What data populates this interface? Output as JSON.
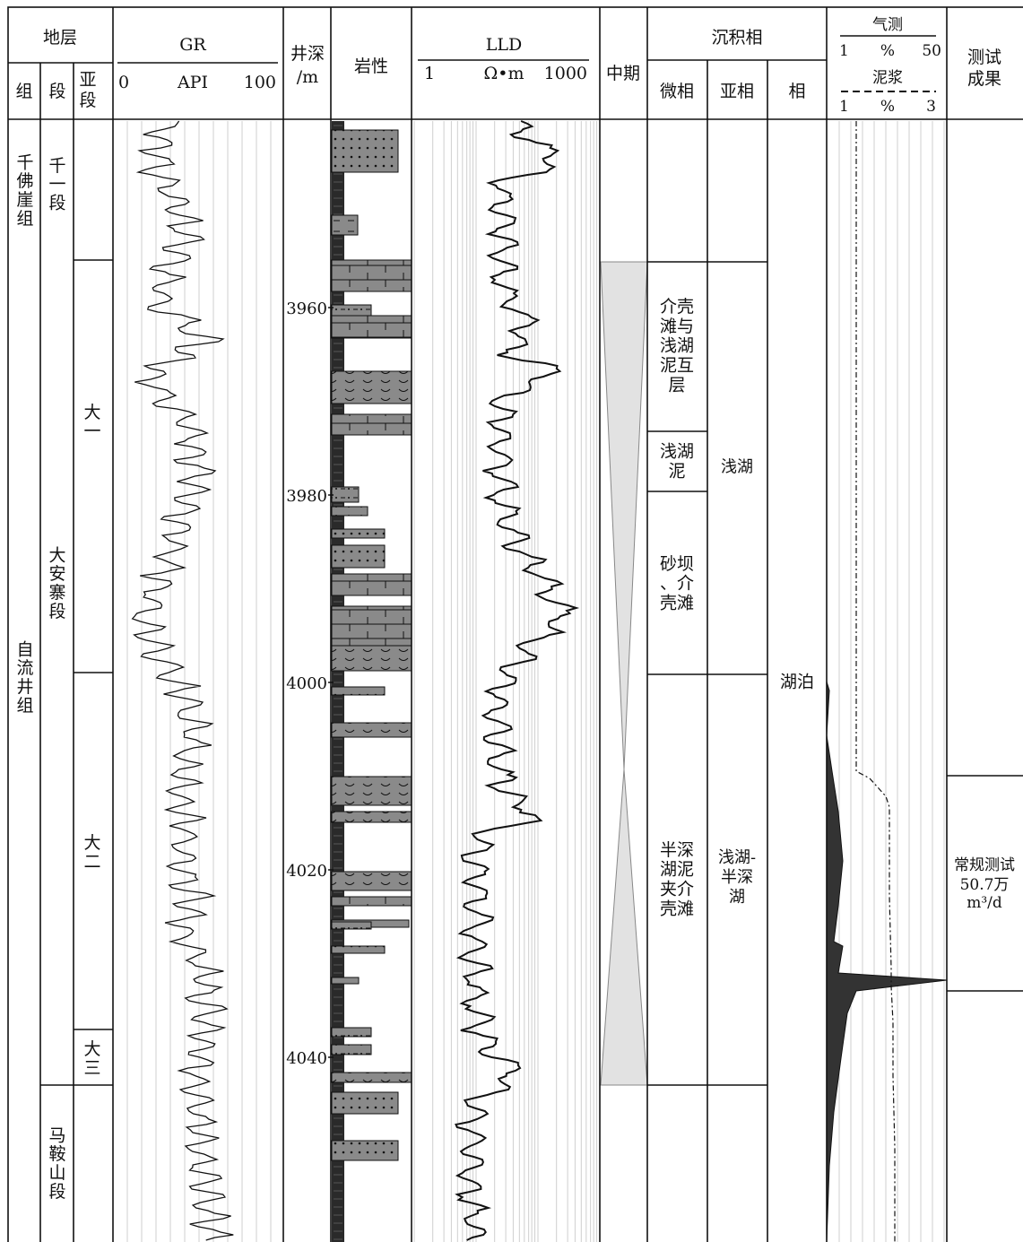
{
  "header": {
    "strata": "地层",
    "group": "组",
    "member": "段",
    "submember": "亚段",
    "gr_title": "GR",
    "gr_min": "0",
    "gr_unit": "API",
    "gr_max": "100",
    "depth_title": "井深",
    "depth_unit": "/m",
    "lith_title": "岩性",
    "lld_title": "LLD",
    "lld_min": "1",
    "lld_unit": "Ω•m",
    "lld_max": "1000",
    "cycle_title": "中期",
    "facies_title": "沉积相",
    "microfacies": "微相",
    "subfacies": "亚相",
    "facies": "相",
    "gas_title": "气测",
    "gas_min": "1",
    "gas_unit": "%",
    "gas_max": "50",
    "mud_title": "泥浆",
    "mud_min": "1",
    "mud_unit": "%",
    "mud_max": "3",
    "test_title": "测试成果"
  },
  "depth_ticks": [
    "3960",
    "3980",
    "4000",
    "4020",
    "4040"
  ],
  "groups": [
    {
      "label": "千佛崖组"
    },
    {
      "label": "自流井组"
    }
  ],
  "members": [
    {
      "label": "千一段"
    },
    {
      "label": "大安寨段"
    },
    {
      "label": "马鞍山段"
    }
  ],
  "submembers": [
    {
      "label": "大一"
    },
    {
      "label": "大二"
    },
    {
      "label": "大三"
    }
  ],
  "microfacies": [
    {
      "label": "介壳滩与浅湖泥互层"
    },
    {
      "label": "浅湖泥"
    },
    {
      "label": "砂坝、介壳滩"
    },
    {
      "label": "半深湖泥夹介壳滩"
    }
  ],
  "subfacies": [
    {
      "label": "浅湖"
    },
    {
      "label": "浅湖-半深湖"
    }
  ],
  "facies": [
    {
      "label": "湖泊"
    }
  ],
  "test_result": {
    "line1": "常规测试",
    "line2": "50.7万",
    "line3": "m³/d"
  },
  "colors": {
    "line": "#111111",
    "grid": "#bbbbbb",
    "lith_fill": "#8a8a8a",
    "mudstone": "#2a2a2a",
    "cycle_fill": "#e2e2e2"
  }
}
